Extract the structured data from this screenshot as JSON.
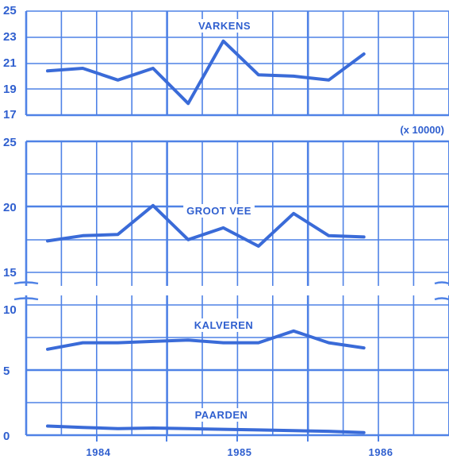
{
  "chart_data": [
    {
      "type": "line",
      "title": "",
      "ylim": [
        17,
        25
      ],
      "y_ticks": [
        "25",
        "23",
        "21",
        "19",
        "17"
      ],
      "series": [
        {
          "name": "VARKENS",
          "values": [
            20.4,
            20.6,
            19.7,
            20.6,
            17.9,
            22.7,
            20.1,
            20.0,
            19.7,
            21.7
          ]
        }
      ]
    },
    {
      "type": "line",
      "title": "",
      "ylim": [
        15,
        25
      ],
      "y_ticks": [
        "25",
        "20",
        "15"
      ],
      "unit_note": "(x 10000)",
      "series": [
        {
          "name": "GROOT VEE",
          "values": [
            17.4,
            17.8,
            17.9,
            20.1,
            17.5,
            18.4,
            17.0,
            19.5,
            17.8,
            17.7
          ]
        }
      ]
    },
    {
      "type": "line",
      "title": "",
      "ylim": [
        0,
        10
      ],
      "y_ticks": [
        "10",
        "5",
        "0"
      ],
      "x_tick_labels": [
        "1984",
        "1985",
        "1986"
      ],
      "series": [
        {
          "name": "KALVEREN",
          "values": [
            6.6,
            7.1,
            7.1,
            7.2,
            7.3,
            7.1,
            7.1,
            8.0,
            7.1,
            6.7
          ]
        },
        {
          "name": "PAARDEN",
          "values": [
            0.7,
            0.6,
            0.5,
            0.55,
            0.5,
            0.45,
            0.4,
            0.35,
            0.3,
            0.2
          ]
        }
      ]
    }
  ],
  "colors": {
    "line": "#3a6bd8",
    "grid": "#4f82e6",
    "text": "#2f5fcf",
    "background": "#ffffff"
  }
}
